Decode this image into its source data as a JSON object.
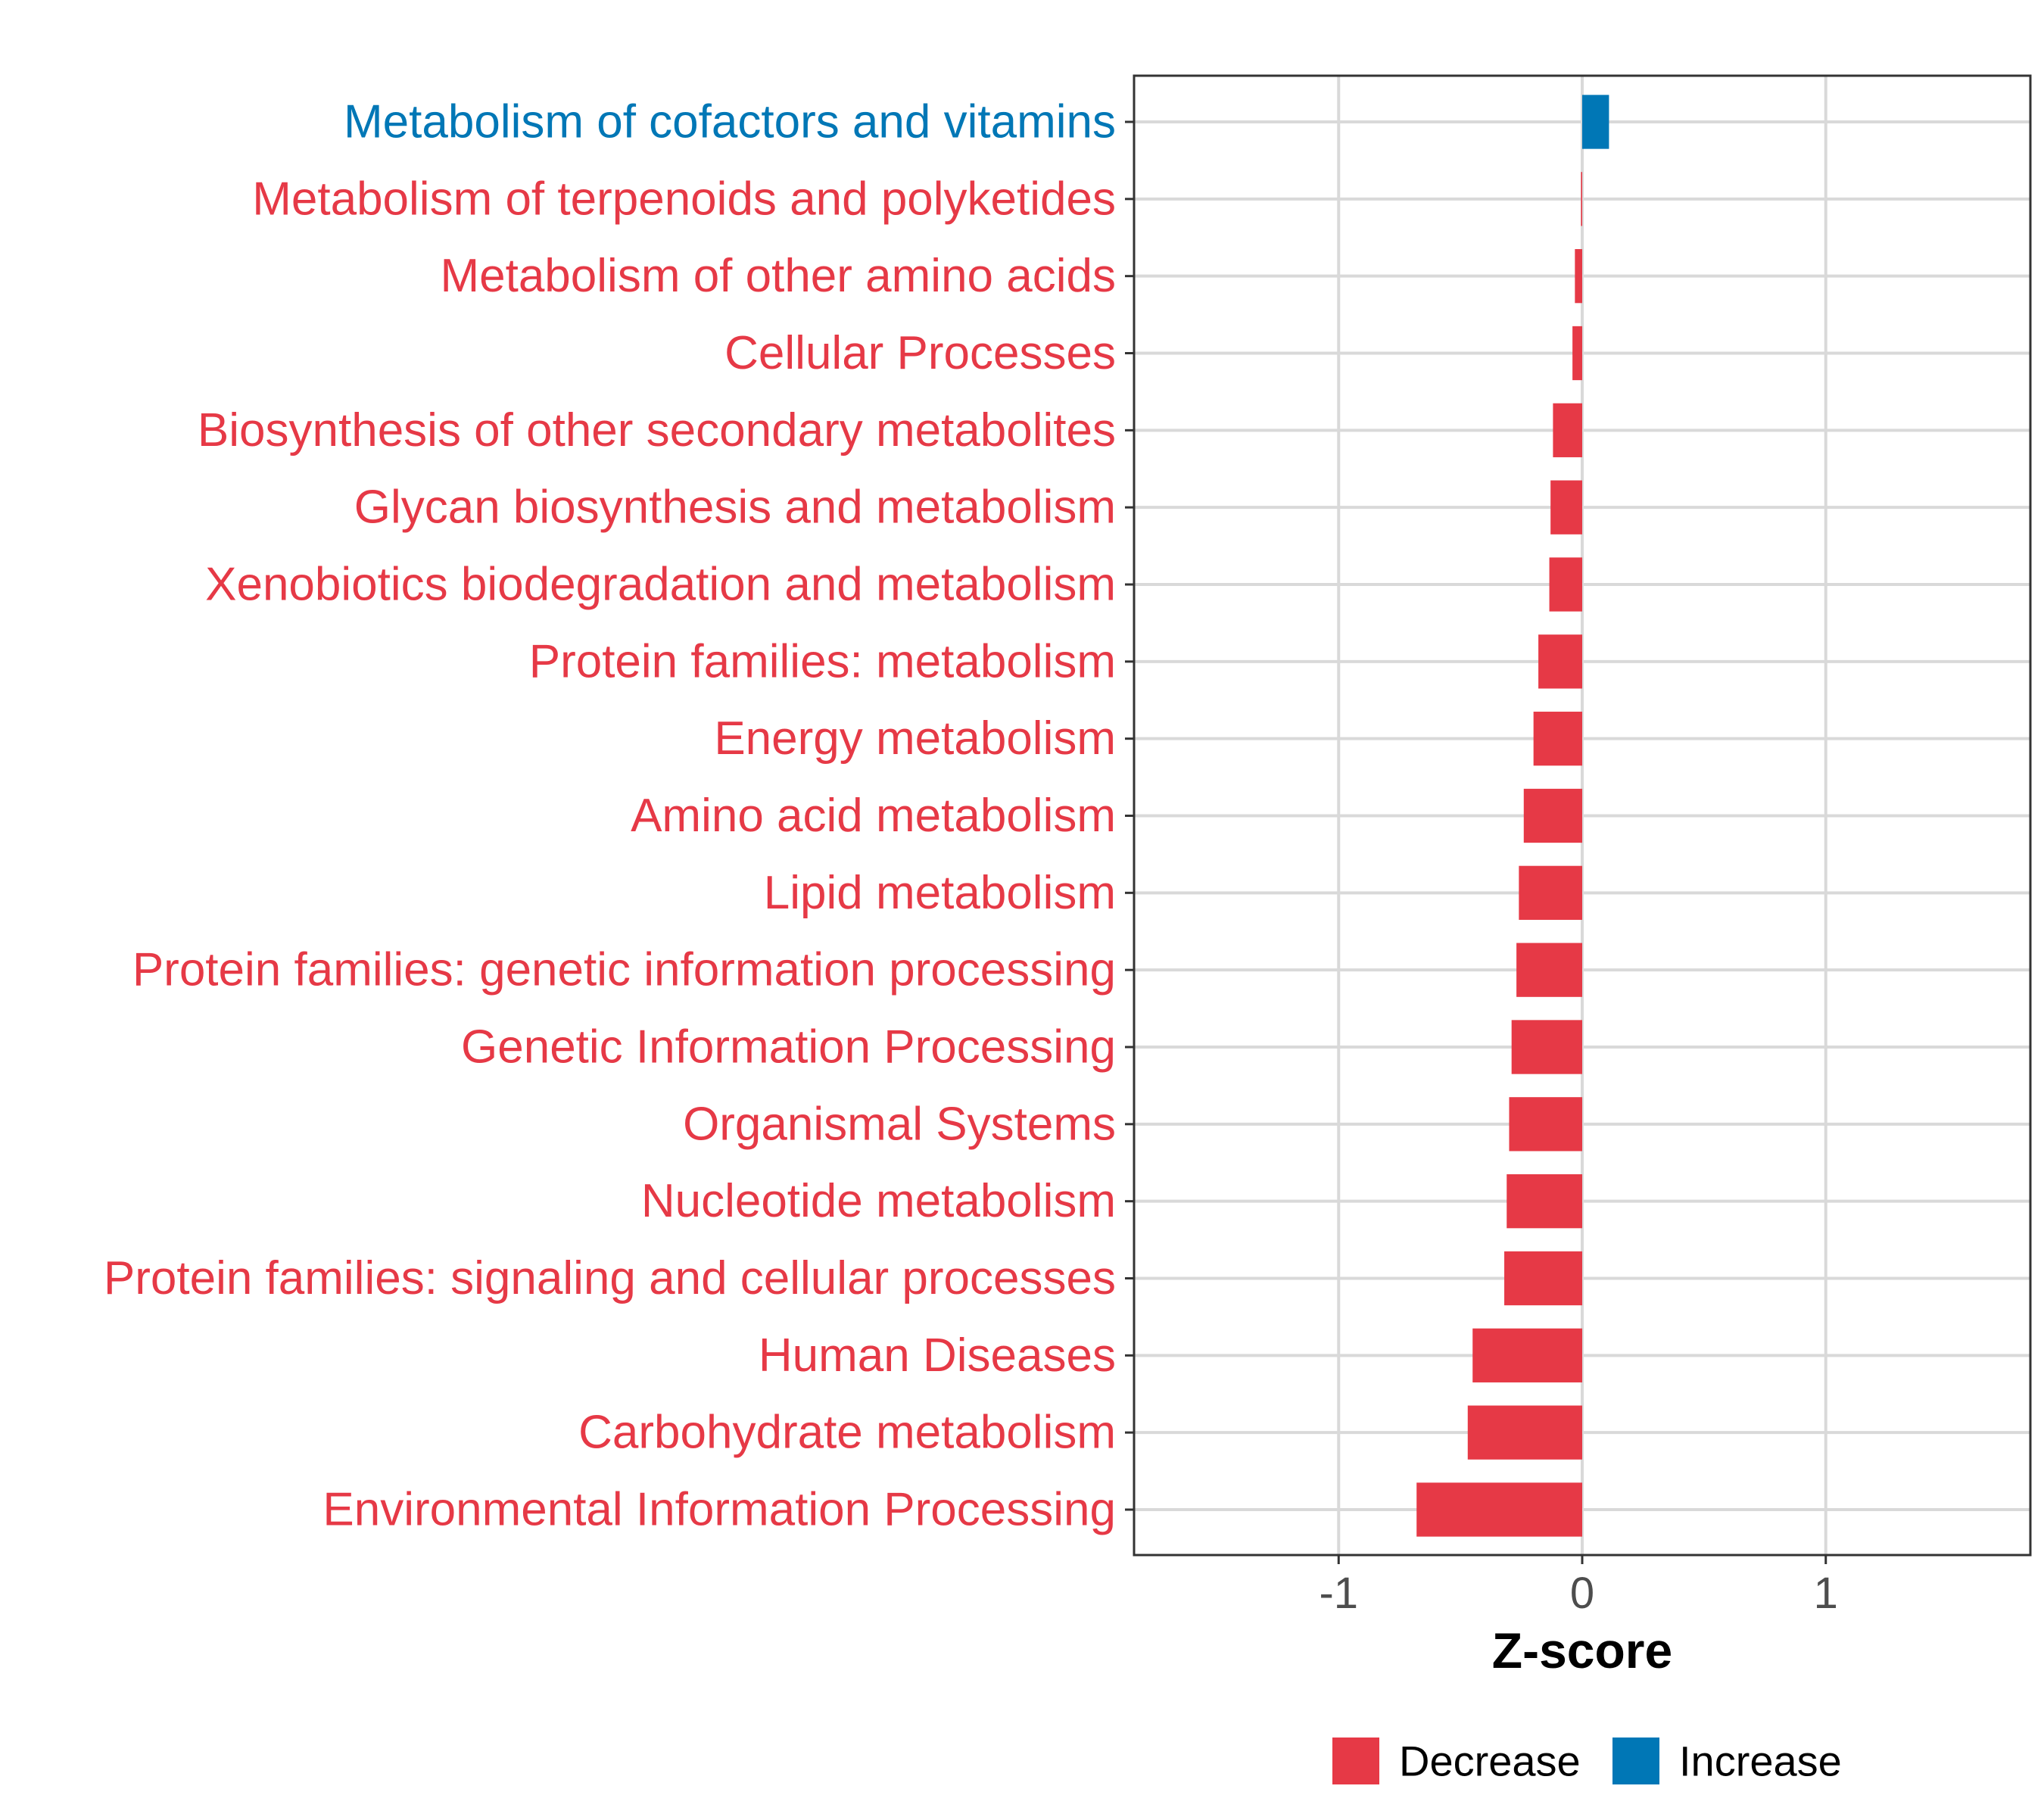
{
  "chart_data": {
    "type": "bar",
    "orientation": "horizontal",
    "xlabel": "Z-score",
    "xlim": [
      -1.84,
      1.84
    ],
    "xticks": [
      -1,
      0,
      1
    ],
    "xtick_labels": [
      "-1",
      "0",
      "1"
    ],
    "grid": true,
    "legend_position": "bottom",
    "colors": {
      "Decrease": "#E63946",
      "Increase": "#0077B6"
    },
    "categories": [
      "Metabolism of cofactors and vitamins",
      "Metabolism of terpenoids and polyketides",
      "Metabolism of other amino acids",
      "Cellular Processes",
      "Biosynthesis of other secondary metabolites",
      "Glycan biosynthesis and metabolism",
      "Xenobiotics biodegradation and metabolism",
      "Protein families: metabolism",
      "Energy metabolism",
      "Amino acid metabolism",
      "Lipid metabolism",
      "Protein families: genetic information processing",
      "Genetic Information Processing",
      "Organismal Systems",
      "Nucleotide metabolism",
      "Protein families: signaling and cellular processes",
      "Human Diseases",
      "Carbohydrate metabolism",
      "Environmental Information Processing"
    ],
    "values": [
      0.11,
      -0.005,
      -0.03,
      -0.04,
      -0.12,
      -0.13,
      -0.135,
      -0.18,
      -0.2,
      -0.24,
      -0.26,
      -0.27,
      -0.29,
      -0.3,
      -0.31,
      -0.32,
      -0.45,
      -0.47,
      -0.68
    ],
    "groups": [
      "Increase",
      "Decrease",
      "Decrease",
      "Decrease",
      "Decrease",
      "Decrease",
      "Decrease",
      "Decrease",
      "Decrease",
      "Decrease",
      "Decrease",
      "Decrease",
      "Decrease",
      "Decrease",
      "Decrease",
      "Decrease",
      "Decrease",
      "Decrease",
      "Decrease"
    ],
    "legend": [
      "Decrease",
      "Increase"
    ]
  }
}
